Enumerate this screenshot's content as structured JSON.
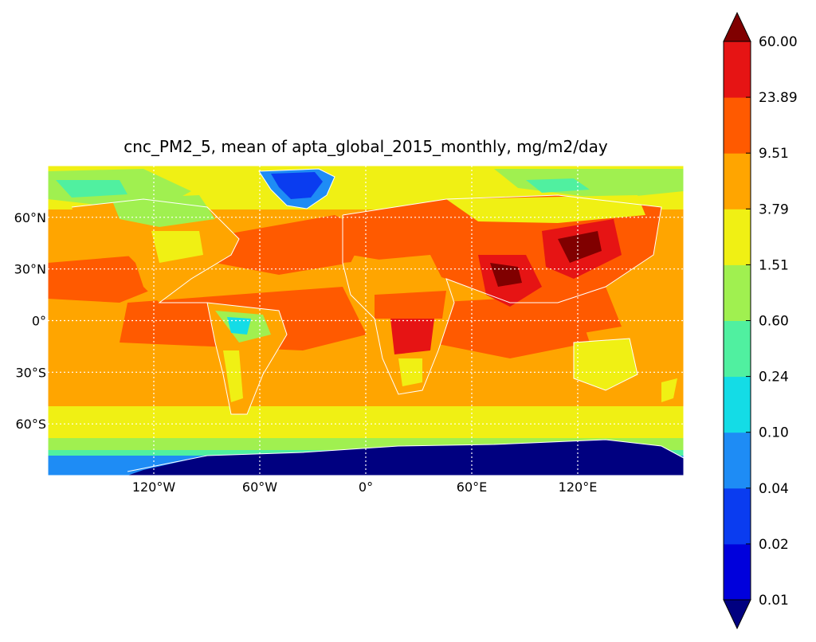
{
  "title": "cnc_PM2_5,  mean of apta_global_2015_monthly, mg/m2/day",
  "map": {
    "projection": "equirectangular",
    "lon_range": [
      -180,
      180
    ],
    "lat_range": [
      -90,
      90
    ],
    "gridlines": "dotted-white",
    "coastlines": "white",
    "lat_ticks": [
      {
        "value": 60,
        "label": "60°N"
      },
      {
        "value": 30,
        "label": "30°N"
      },
      {
        "value": 0,
        "label": "0°"
      },
      {
        "value": -30,
        "label": "30°S"
      },
      {
        "value": -60,
        "label": "60°S"
      }
    ],
    "lon_ticks": [
      {
        "value": -120,
        "label": "120°W"
      },
      {
        "value": -60,
        "label": "60°W"
      },
      {
        "value": 0,
        "label": "0°"
      },
      {
        "value": 60,
        "label": "60°E"
      },
      {
        "value": 120,
        "label": "120°E"
      }
    ]
  },
  "colorbar": {
    "levels": [
      "0.01",
      "0.02",
      "0.04",
      "0.10",
      "0.24",
      "0.60",
      "1.51",
      "3.79",
      "9.51",
      "23.89",
      "60.00"
    ],
    "colors": [
      "#0000dc",
      "#0a3cf0",
      "#1e8cf5",
      "#14dce6",
      "#50f0a0",
      "#a0f050",
      "#f0f014",
      "#ffa500",
      "#ff5a00",
      "#e61414"
    ],
    "under_color": "#000080",
    "over_color": "#800000",
    "extend": "both"
  }
}
